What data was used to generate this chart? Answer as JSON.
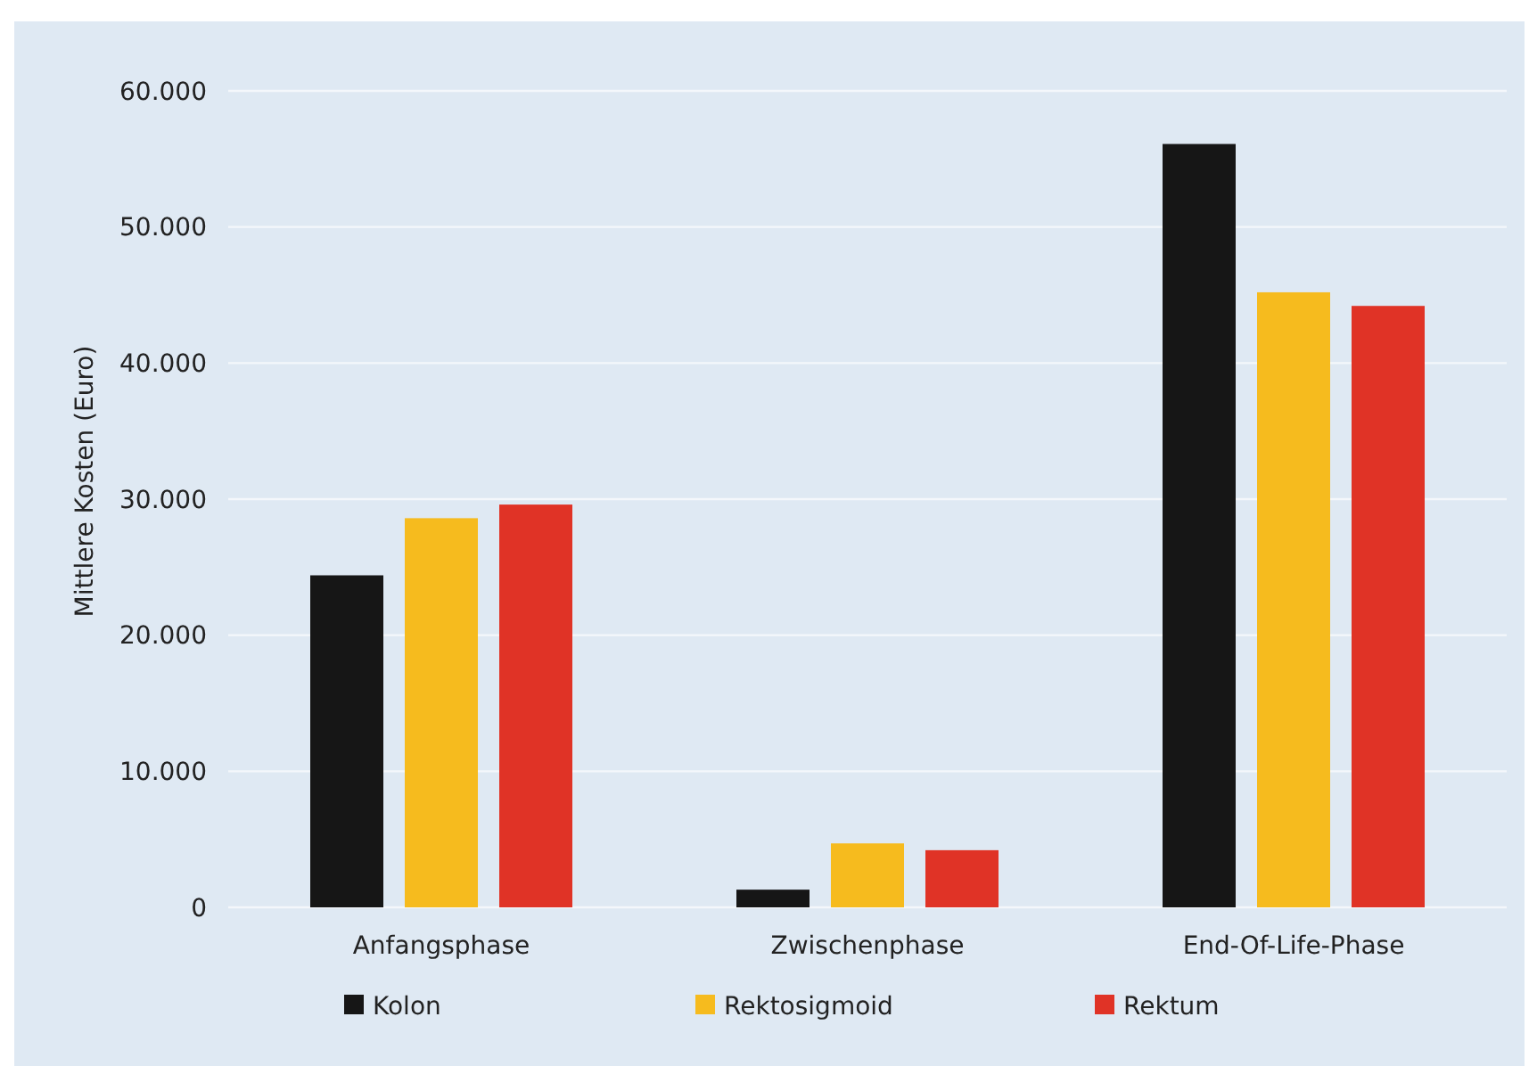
{
  "chart_data": {
    "type": "bar",
    "ylabel": "Mittlere Kosten (Euro)",
    "categories": [
      "Anfangsphase",
      "Zwischenphase",
      "End-Of-Life-Phase"
    ],
    "series": [
      {
        "name": "Kolon",
        "color": "#161616",
        "values": [
          24400,
          1300,
          56100
        ]
      },
      {
        "name": "Rektosigmoid",
        "color": "#f6bb1e",
        "values": [
          28600,
          4700,
          45200
        ]
      },
      {
        "name": "Rektum",
        "color": "#e03326",
        "values": [
          29600,
          4200,
          44200
        ]
      }
    ],
    "ylim": [
      0,
      60000
    ],
    "yticks": [
      {
        "value": 0,
        "label": "0"
      },
      {
        "value": 10000,
        "label": "10.000"
      },
      {
        "value": 20000,
        "label": "20.000"
      },
      {
        "value": 30000,
        "label": "30.000"
      },
      {
        "value": 40000,
        "label": "40.000"
      },
      {
        "value": 50000,
        "label": "50.000"
      },
      {
        "value": 60000,
        "label": "60.000"
      }
    ],
    "grid": "y",
    "legend": "bottom"
  }
}
